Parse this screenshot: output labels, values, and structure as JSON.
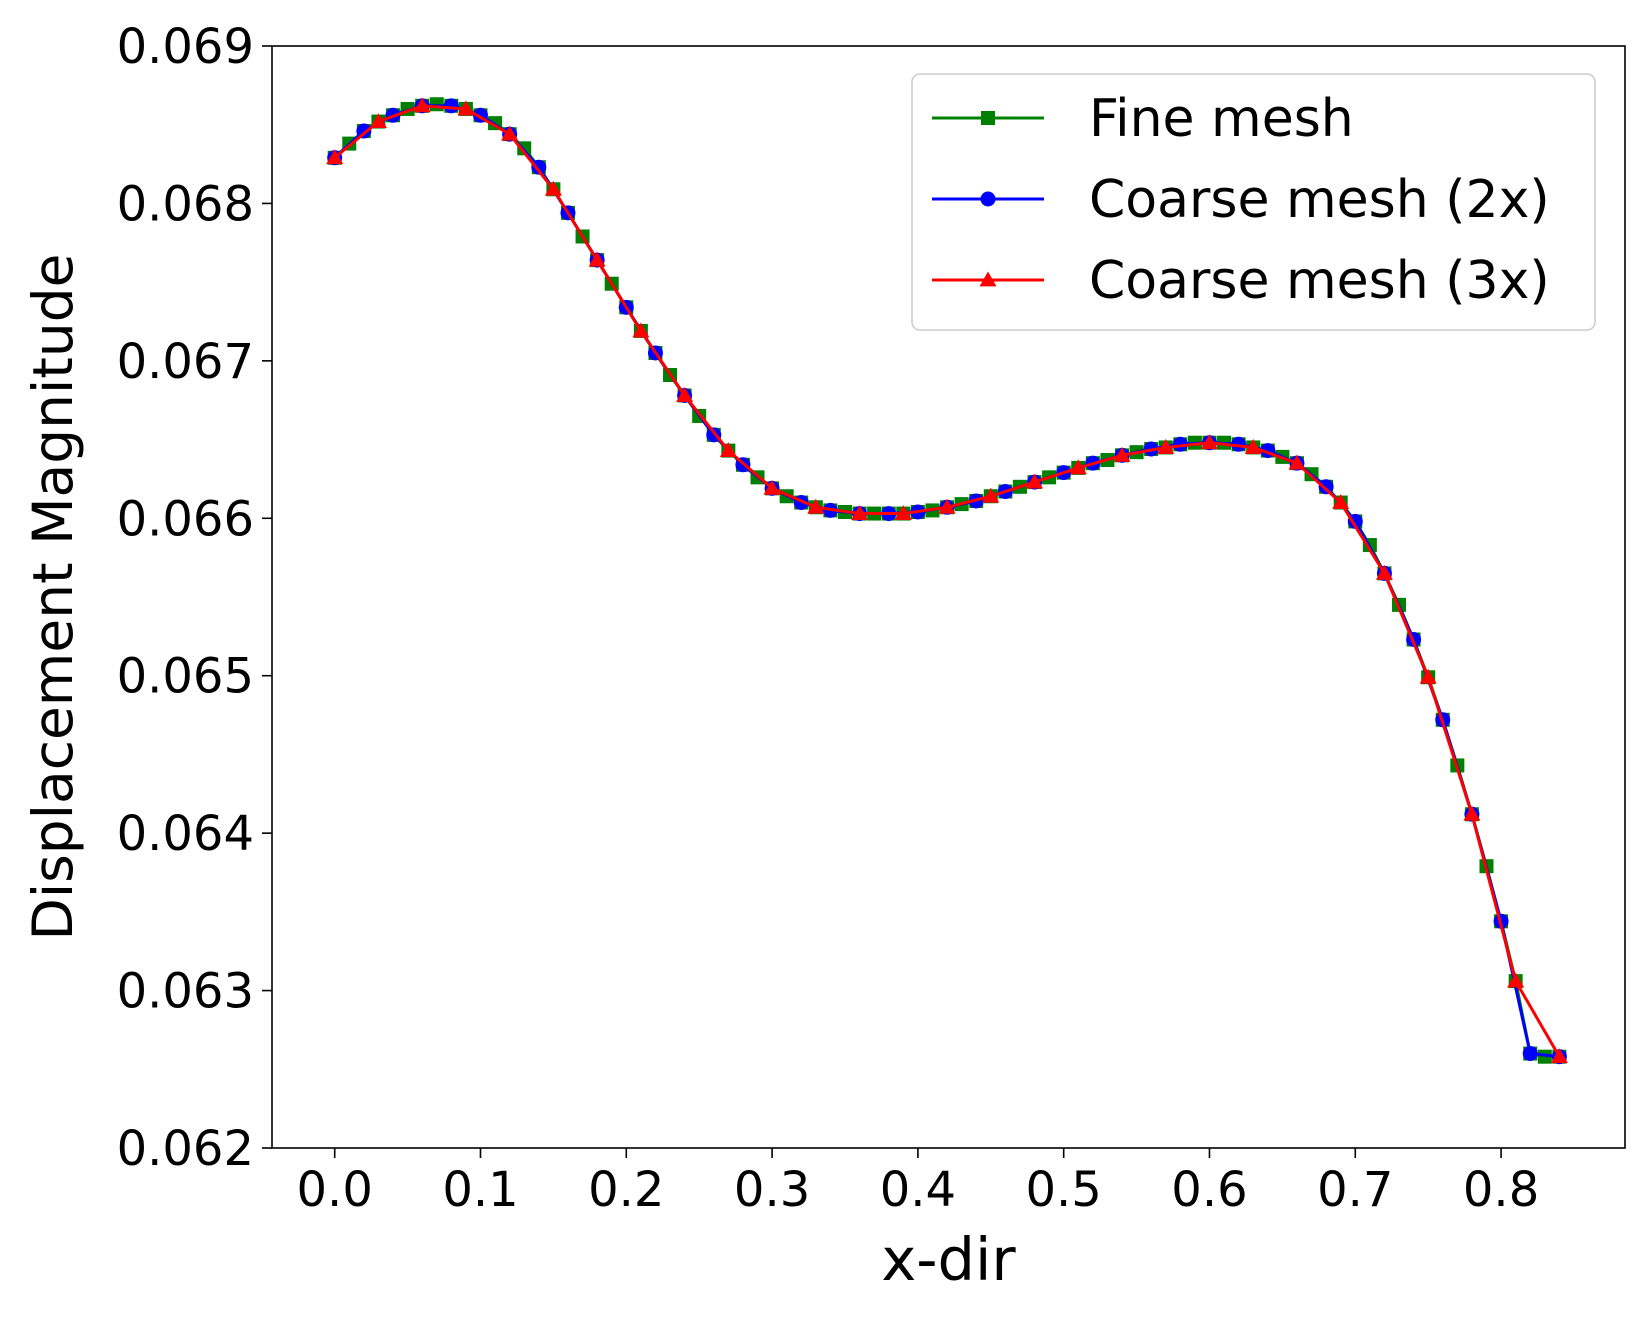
{
  "chart_data": {
    "type": "line",
    "title": "",
    "xlabel": "x-dir",
    "ylabel": "Displacement Magnitude",
    "xlim": [
      -0.043,
      0.885
    ],
    "ylim": [
      0.062,
      0.069
    ],
    "xticks": [
      0.0,
      0.1,
      0.2,
      0.3,
      0.4,
      0.5,
      0.6,
      0.7,
      0.8
    ],
    "xtick_labels": [
      "0.0",
      "0.1",
      "0.2",
      "0.3",
      "0.4",
      "0.5",
      "0.6",
      "0.7",
      "0.8"
    ],
    "yticks": [
      0.062,
      0.063,
      0.064,
      0.065,
      0.066,
      0.067,
      0.068,
      0.069
    ],
    "ytick_labels": [
      "0.062",
      "0.063",
      "0.064",
      "0.065",
      "0.066",
      "0.067",
      "0.068",
      "0.069"
    ],
    "grid": false,
    "legend_position": "top-right",
    "series": [
      {
        "name": "Fine mesh",
        "color": "#008000",
        "marker": "square",
        "x": [
          0.0,
          0.01,
          0.02,
          0.03,
          0.04,
          0.05,
          0.06,
          0.07,
          0.08,
          0.09,
          0.1,
          0.11,
          0.12,
          0.13,
          0.14,
          0.15,
          0.16,
          0.17,
          0.18,
          0.19,
          0.2,
          0.21,
          0.22,
          0.23,
          0.24,
          0.25,
          0.26,
          0.27,
          0.28,
          0.29,
          0.3,
          0.31,
          0.32,
          0.33,
          0.34,
          0.35,
          0.36,
          0.37,
          0.38,
          0.39,
          0.4,
          0.41,
          0.42,
          0.43,
          0.44,
          0.45,
          0.46,
          0.47,
          0.48,
          0.49,
          0.5,
          0.51,
          0.52,
          0.53,
          0.54,
          0.55,
          0.56,
          0.57,
          0.58,
          0.59,
          0.6,
          0.61,
          0.62,
          0.63,
          0.64,
          0.65,
          0.66,
          0.67,
          0.68,
          0.69,
          0.7,
          0.71,
          0.72,
          0.73,
          0.74,
          0.75,
          0.76,
          0.77,
          0.78,
          0.79,
          0.8,
          0.81,
          0.82,
          0.83,
          0.84
        ],
        "y": [
          0.06829,
          0.06838,
          0.06846,
          0.06852,
          0.06856,
          0.0686,
          0.06862,
          0.06863,
          0.06862,
          0.0686,
          0.06856,
          0.06851,
          0.06844,
          0.06835,
          0.06823,
          0.06809,
          0.06794,
          0.06779,
          0.06764,
          0.06749,
          0.06734,
          0.06719,
          0.06705,
          0.06691,
          0.06678,
          0.06665,
          0.06653,
          0.06643,
          0.06634,
          0.06626,
          0.06619,
          0.06614,
          0.0661,
          0.06607,
          0.06605,
          0.06604,
          0.06603,
          0.06603,
          0.06603,
          0.06603,
          0.06604,
          0.06605,
          0.06607,
          0.06609,
          0.06611,
          0.06614,
          0.06617,
          0.0662,
          0.06623,
          0.06626,
          0.06629,
          0.06632,
          0.06635,
          0.06637,
          0.0664,
          0.06642,
          0.06644,
          0.06645,
          0.06647,
          0.06648,
          0.06648,
          0.06648,
          0.06647,
          0.06645,
          0.06643,
          0.06639,
          0.06635,
          0.06628,
          0.0662,
          0.0661,
          0.06598,
          0.06583,
          0.06565,
          0.06545,
          0.06523,
          0.06499,
          0.06472,
          0.06443,
          0.06412,
          0.06379,
          0.06344,
          0.06306,
          0.0626,
          0.06258,
          0.06258
        ]
      },
      {
        "name": "Coarse mesh (2x)",
        "color": "#0000ff",
        "marker": "circle",
        "x": [
          0.0,
          0.02,
          0.04,
          0.06,
          0.08,
          0.1,
          0.12,
          0.14,
          0.16,
          0.18,
          0.2,
          0.22,
          0.24,
          0.26,
          0.28,
          0.3,
          0.32,
          0.34,
          0.36,
          0.38,
          0.4,
          0.42,
          0.44,
          0.46,
          0.48,
          0.5,
          0.52,
          0.54,
          0.56,
          0.58,
          0.6,
          0.62,
          0.64,
          0.66,
          0.68,
          0.7,
          0.72,
          0.74,
          0.76,
          0.78,
          0.8,
          0.82,
          0.84
        ],
        "y": [
          0.06829,
          0.06846,
          0.06856,
          0.06862,
          0.06862,
          0.06856,
          0.06844,
          0.06823,
          0.06794,
          0.06764,
          0.06734,
          0.06705,
          0.06678,
          0.06653,
          0.06634,
          0.06619,
          0.0661,
          0.06605,
          0.06603,
          0.06603,
          0.06604,
          0.06607,
          0.06611,
          0.06617,
          0.06623,
          0.06629,
          0.06635,
          0.0664,
          0.06644,
          0.06647,
          0.06648,
          0.06647,
          0.06643,
          0.06635,
          0.0662,
          0.06598,
          0.06565,
          0.06523,
          0.06472,
          0.06412,
          0.06344,
          0.0626,
          0.06258
        ]
      },
      {
        "name": "Coarse mesh (3x)",
        "color": "#ff0000",
        "marker": "triangle",
        "x": [
          0.0,
          0.03,
          0.06,
          0.09,
          0.12,
          0.15,
          0.18,
          0.21,
          0.24,
          0.27,
          0.3,
          0.33,
          0.36,
          0.39,
          0.42,
          0.45,
          0.48,
          0.51,
          0.54,
          0.57,
          0.6,
          0.63,
          0.66,
          0.69,
          0.72,
          0.75,
          0.78,
          0.81,
          0.84
        ],
        "y": [
          0.06829,
          0.06852,
          0.06862,
          0.0686,
          0.06844,
          0.06809,
          0.06764,
          0.06719,
          0.06678,
          0.06643,
          0.06619,
          0.06607,
          0.06603,
          0.06603,
          0.06607,
          0.06614,
          0.06623,
          0.06632,
          0.0664,
          0.06645,
          0.06648,
          0.06645,
          0.06635,
          0.0661,
          0.06565,
          0.06499,
          0.06412,
          0.06306,
          0.06258
        ]
      }
    ]
  }
}
